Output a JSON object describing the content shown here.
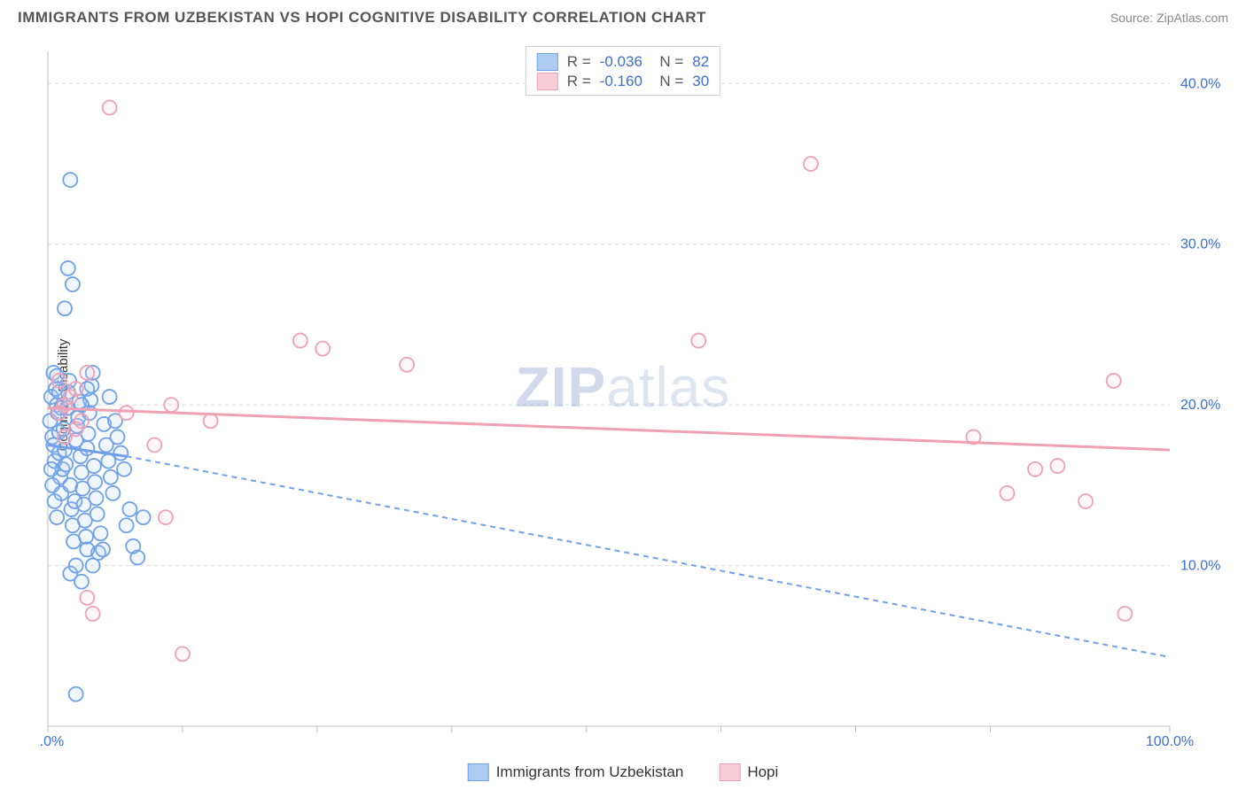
{
  "title": "IMMIGRANTS FROM UZBEKISTAN VS HOPI COGNITIVE DISABILITY CORRELATION CHART",
  "source_label": "Source:",
  "source_name": "ZipAtlas.com",
  "watermark_a": "ZIP",
  "watermark_b": "atlas",
  "y_axis_label": "Cognitive Disability",
  "chart": {
    "type": "scatter",
    "background_color": "#ffffff",
    "grid_color": "#d8d8d8",
    "axis_color": "#bfbfbf",
    "tick_label_color": "#3b6fd6",
    "xlim": [
      0,
      100
    ],
    "ylim": [
      0,
      42
    ],
    "x_ticks_major": [
      0,
      100
    ],
    "x_ticks_minor": [
      12,
      24,
      36,
      48,
      60,
      72,
      84
    ],
    "x_tick_labels": {
      "0": "0.0%",
      "100": "100.0%"
    },
    "y_ticks": [
      10,
      20,
      30,
      40
    ],
    "y_tick_labels": {
      "10": "10.0%",
      "20": "20.0%",
      "30": "30.0%",
      "40": "40.0%"
    },
    "marker_radius": 8,
    "series": [
      {
        "id": "uzbekistan",
        "label": "Immigrants from Uzbekistan",
        "color_stroke": "#6fa0e8",
        "color_fill": "#aecbf2",
        "R_label": "R",
        "R_value": "-0.036",
        "N_label": "N",
        "N_value": "82",
        "trend": {
          "x1": 0,
          "y1": 17.5,
          "x2_solid": 7,
          "y2_solid": 16.8,
          "x2": 100,
          "y2": 4.3,
          "dashed_after": 7
        },
        "points": [
          [
            0.2,
            19.0
          ],
          [
            0.3,
            20.5
          ],
          [
            0.4,
            18.0
          ],
          [
            0.5,
            17.5
          ],
          [
            0.6,
            16.5
          ],
          [
            0.7,
            21.0
          ],
          [
            0.8,
            20.0
          ],
          [
            0.9,
            19.5
          ],
          [
            1.0,
            18.3
          ],
          [
            1.0,
            17.0
          ],
          [
            1.1,
            15.5
          ],
          [
            1.2,
            14.5
          ],
          [
            1.3,
            16.0
          ],
          [
            1.4,
            18.5
          ],
          [
            1.5,
            17.2
          ],
          [
            1.6,
            16.3
          ],
          [
            1.7,
            19.8
          ],
          [
            1.8,
            20.8
          ],
          [
            1.9,
            21.5
          ],
          [
            2.0,
            15.0
          ],
          [
            2.1,
            13.5
          ],
          [
            2.2,
            12.5
          ],
          [
            2.3,
            11.5
          ],
          [
            2.4,
            14.0
          ],
          [
            2.5,
            17.8
          ],
          [
            2.6,
            18.7
          ],
          [
            2.7,
            19.2
          ],
          [
            2.8,
            20.2
          ],
          [
            2.9,
            16.8
          ],
          [
            3.0,
            15.8
          ],
          [
            3.1,
            14.8
          ],
          [
            3.2,
            13.8
          ],
          [
            3.3,
            12.8
          ],
          [
            3.4,
            11.8
          ],
          [
            3.5,
            17.3
          ],
          [
            3.6,
            18.2
          ],
          [
            3.7,
            19.5
          ],
          [
            3.8,
            20.3
          ],
          [
            3.9,
            21.2
          ],
          [
            4.0,
            22.0
          ],
          [
            4.1,
            16.2
          ],
          [
            4.2,
            15.2
          ],
          [
            4.3,
            14.2
          ],
          [
            4.4,
            13.2
          ],
          [
            4.5,
            10.8
          ],
          [
            4.7,
            12.0
          ],
          [
            4.9,
            11.0
          ],
          [
            5.0,
            18.8
          ],
          [
            5.2,
            17.5
          ],
          [
            5.4,
            16.5
          ],
          [
            5.6,
            15.5
          ],
          [
            5.8,
            14.5
          ],
          [
            6.0,
            19.0
          ],
          [
            6.2,
            18.0
          ],
          [
            6.5,
            17.0
          ],
          [
            6.8,
            16.0
          ],
          [
            7.0,
            12.5
          ],
          [
            7.3,
            13.5
          ],
          [
            7.6,
            11.2
          ],
          [
            8.0,
            10.5
          ],
          [
            2.0,
            9.5
          ],
          [
            2.5,
            10.0
          ],
          [
            3.0,
            9.0
          ],
          [
            1.5,
            26.0
          ],
          [
            1.8,
            28.5
          ],
          [
            2.2,
            27.5
          ],
          [
            2.0,
            34.0
          ],
          [
            0.5,
            22.0
          ],
          [
            0.8,
            21.8
          ],
          [
            1.0,
            20.8
          ],
          [
            1.2,
            19.8
          ],
          [
            0.3,
            16.0
          ],
          [
            0.4,
            15.0
          ],
          [
            0.6,
            14.0
          ],
          [
            0.8,
            13.0
          ],
          [
            3.5,
            11.0
          ],
          [
            4.0,
            10.0
          ],
          [
            2.5,
            2.0
          ],
          [
            8.5,
            13.0
          ],
          [
            5.5,
            20.5
          ],
          [
            3.0,
            20.0
          ],
          [
            3.5,
            21.0
          ]
        ]
      },
      {
        "id": "hopi",
        "label": "Hopi",
        "color_stroke": "#f0a0b4",
        "color_fill": "#f8cdd7",
        "R_label": "R",
        "R_value": "-0.160",
        "N_label": "N",
        "N_value": "30",
        "trend": {
          "x1": 0,
          "y1": 19.8,
          "x2": 100,
          "y2": 17.2
        },
        "points": [
          [
            1.0,
            21.5
          ],
          [
            1.5,
            20.0
          ],
          [
            2.0,
            20.5
          ],
          [
            2.5,
            18.5
          ],
          [
            3.0,
            19.0
          ],
          [
            3.5,
            22.0
          ],
          [
            5.5,
            38.5
          ],
          [
            7.0,
            19.5
          ],
          [
            9.5,
            17.5
          ],
          [
            10.5,
            13.0
          ],
          [
            11.0,
            20.0
          ],
          [
            12.0,
            4.5
          ],
          [
            14.5,
            19.0
          ],
          [
            22.5,
            24.0
          ],
          [
            24.5,
            23.5
          ],
          [
            32.0,
            22.5
          ],
          [
            58.0,
            24.0
          ],
          [
            68.0,
            35.0
          ],
          [
            82.5,
            18.0
          ],
          [
            85.5,
            14.5
          ],
          [
            88.0,
            16.0
          ],
          [
            90.0,
            16.2
          ],
          [
            92.5,
            14.0
          ],
          [
            95.0,
            21.5
          ],
          [
            96.0,
            7.0
          ],
          [
            4.0,
            7.0
          ],
          [
            3.5,
            8.0
          ],
          [
            1.0,
            19.5
          ],
          [
            1.5,
            18.0
          ],
          [
            2.5,
            21.0
          ]
        ]
      }
    ]
  }
}
